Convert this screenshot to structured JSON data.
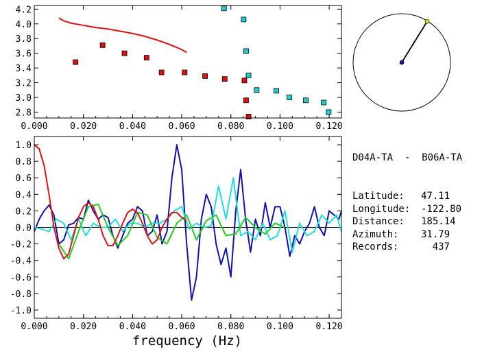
{
  "chart_data": [
    {
      "type": "scatter",
      "xlim": [
        0.0,
        0.125
      ],
      "ylim": [
        2.72,
        4.25
      ],
      "xticks": [
        "0.000",
        "0.020",
        "0.040",
        "0.060",
        "0.080",
        "0.100",
        "0.120"
      ],
      "yticks": [
        "4.2",
        "4.0",
        "3.8",
        "3.6",
        "3.4",
        "3.2",
        "3.0",
        "2.8"
      ],
      "curve": {
        "color": "#dd1111",
        "x": [
          0.01,
          0.012,
          0.015,
          0.02,
          0.025,
          0.03,
          0.035,
          0.04,
          0.045,
          0.05,
          0.055,
          0.06,
          0.062
        ],
        "y": [
          4.08,
          4.04,
          4.01,
          3.98,
          3.95,
          3.93,
          3.9,
          3.87,
          3.83,
          3.78,
          3.72,
          3.65,
          3.61
        ]
      },
      "series": [
        {
          "color": "#dd1111",
          "x": [
            0.0168,
            0.0278,
            0.0367,
            0.0457,
            0.0518,
            0.0612,
            0.0695,
            0.0775,
            0.0855,
            0.0862,
            0.0872
          ],
          "y": [
            3.48,
            3.71,
            3.6,
            3.54,
            3.34,
            3.34,
            3.29,
            3.25,
            3.23,
            2.96,
            2.74
          ]
        },
        {
          "color": "#22cccc",
          "x": [
            0.0772,
            0.0852,
            0.0862,
            0.0872,
            0.0905,
            0.0985,
            0.1038,
            0.1105,
            0.1178,
            0.1198
          ],
          "y": [
            4.21,
            4.06,
            3.63,
            3.3,
            3.1,
            3.09,
            3.0,
            2.96,
            2.93,
            2.8
          ]
        }
      ]
    },
    {
      "type": "line",
      "xlabel": "frequency (Hz)",
      "xlim": [
        0.0,
        0.125
      ],
      "ylim": [
        -1.1,
        1.1
      ],
      "xticks": [
        "0.000",
        "0.020",
        "0.040",
        "0.060",
        "0.080",
        "0.100",
        "0.120"
      ],
      "yticks": [
        "1.0",
        "0.8",
        "0.6",
        "0.4",
        "0.2",
        "0.0",
        "-0.2",
        "-0.4",
        "-0.6",
        "-0.8",
        "-1.0"
      ],
      "series": [
        {
          "color": "#1111aa",
          "x": [
            0.0,
            0.002,
            0.004,
            0.006,
            0.008,
            0.01,
            0.012,
            0.014,
            0.016,
            0.018,
            0.02,
            0.022,
            0.024,
            0.026,
            0.028,
            0.03,
            0.032,
            0.034,
            0.036,
            0.038,
            0.04,
            0.042,
            0.044,
            0.046,
            0.048,
            0.05,
            0.052,
            0.054,
            0.056,
            0.058,
            0.06,
            0.062,
            0.064,
            0.066,
            0.068,
            0.07,
            0.072,
            0.074,
            0.076,
            0.078,
            0.08,
            0.082,
            0.084,
            0.086,
            0.088,
            0.09,
            0.092,
            0.094,
            0.096,
            0.098,
            0.1,
            0.102,
            0.104,
            0.106,
            0.108,
            0.11,
            0.112,
            0.114,
            0.116,
            0.118,
            0.12,
            0.122,
            0.124,
            0.125
          ],
          "y": [
            -0.05,
            0.1,
            0.2,
            0.27,
            0.15,
            -0.2,
            -0.15,
            0.03,
            0.05,
            0.12,
            0.1,
            0.33,
            0.2,
            0.1,
            0.15,
            0.12,
            -0.1,
            -0.25,
            -0.1,
            0.05,
            0.1,
            0.25,
            0.2,
            -0.1,
            -0.05,
            0.15,
            -0.2,
            -0.05,
            0.6,
            1.0,
            0.7,
            -0.2,
            -0.88,
            -0.6,
            0.1,
            0.4,
            0.25,
            -0.2,
            -0.45,
            -0.25,
            -0.6,
            0.2,
            0.7,
            0.1,
            -0.3,
            0.1,
            -0.1,
            0.3,
            0.0,
            0.25,
            0.25,
            0.0,
            -0.35,
            -0.1,
            -0.2,
            -0.05,
            0.05,
            0.25,
            0.0,
            -0.1,
            0.2,
            0.15,
            0.1,
            0.2
          ]
        },
        {
          "color": "#22dddd",
          "x": [
            0.0,
            0.003,
            0.006,
            0.009,
            0.012,
            0.015,
            0.018,
            0.021,
            0.024,
            0.027,
            0.03,
            0.033,
            0.036,
            0.039,
            0.042,
            0.045,
            0.048,
            0.051,
            0.054,
            0.057,
            0.06,
            0.063,
            0.066,
            0.069,
            0.072,
            0.075,
            0.078,
            0.081,
            0.084,
            0.087,
            0.09,
            0.093,
            0.096,
            0.099,
            0.102,
            0.105,
            0.108,
            0.111,
            0.114,
            0.117,
            0.12,
            0.123,
            0.125
          ],
          "y": [
            0.0,
            -0.02,
            -0.05,
            0.1,
            0.05,
            -0.15,
            0.1,
            -0.1,
            0.05,
            0.0,
            0.0,
            0.1,
            -0.05,
            0.05,
            0.05,
            0.0,
            0.05,
            0.05,
            0.1,
            0.2,
            0.25,
            -0.02,
            0.05,
            0.0,
            0.02,
            0.5,
            0.1,
            0.6,
            -0.1,
            -0.05,
            -0.15,
            0.05,
            -0.15,
            -0.1,
            0.2,
            -0.3,
            0.05,
            -0.1,
            -0.05,
            0.15,
            0.05,
            0.15,
            -0.05
          ]
        },
        {
          "color": "#22cc22",
          "x": [
            0.01,
            0.014,
            0.018,
            0.022,
            0.026,
            0.03,
            0.034,
            0.038,
            0.042,
            0.046,
            0.05,
            0.054,
            0.058,
            0.062,
            0.066,
            0.07,
            0.074,
            0.078,
            0.082,
            0.086,
            0.09,
            0.094,
            0.098,
            0.102
          ],
          "y": [
            -0.2,
            -0.38,
            -0.05,
            0.25,
            0.28,
            0.0,
            -0.22,
            -0.1,
            0.18,
            0.15,
            -0.12,
            -0.2,
            0.05,
            0.15,
            -0.15,
            0.08,
            0.15,
            -0.1,
            -0.08,
            0.12,
            0.0,
            -0.08,
            0.05,
            0.0
          ]
        },
        {
          "color": "#dd1111",
          "x": [
            0.0,
            0.002,
            0.004,
            0.006,
            0.008,
            0.01,
            0.012,
            0.014,
            0.016,
            0.018,
            0.02,
            0.022,
            0.024,
            0.026,
            0.028,
            0.03,
            0.032,
            0.034,
            0.036,
            0.038,
            0.04,
            0.042,
            0.044,
            0.046,
            0.048,
            0.05,
            0.052,
            0.054,
            0.056,
            0.058,
            0.06,
            0.062
          ],
          "y": [
            1.0,
            0.95,
            0.75,
            0.4,
            0.0,
            -0.25,
            -0.38,
            -0.32,
            -0.1,
            0.12,
            0.25,
            0.3,
            0.25,
            0.1,
            -0.1,
            -0.22,
            -0.22,
            -0.1,
            0.05,
            0.18,
            0.22,
            0.18,
            0.05,
            -0.1,
            -0.2,
            -0.15,
            0.0,
            0.1,
            0.18,
            0.18,
            0.12,
            0.08
          ]
        }
      ]
    }
  ],
  "station_map": {
    "azimuth_deg": 31.79,
    "distance_fraction": 0.99,
    "origin_color": "#1111aa",
    "station_color": "#dddd22"
  },
  "info": {
    "title": "D04A-TA  -  B06A-TA",
    "rows": [
      {
        "label": "Latitude:",
        "value": "47.11"
      },
      {
        "label": "Longitude:",
        "value": "-122.80"
      },
      {
        "label": "Distance:",
        "value": "185.14"
      },
      {
        "label": "Azimuth:",
        "value": "31.79"
      },
      {
        "label": "Records:",
        "value": "437"
      }
    ]
  }
}
